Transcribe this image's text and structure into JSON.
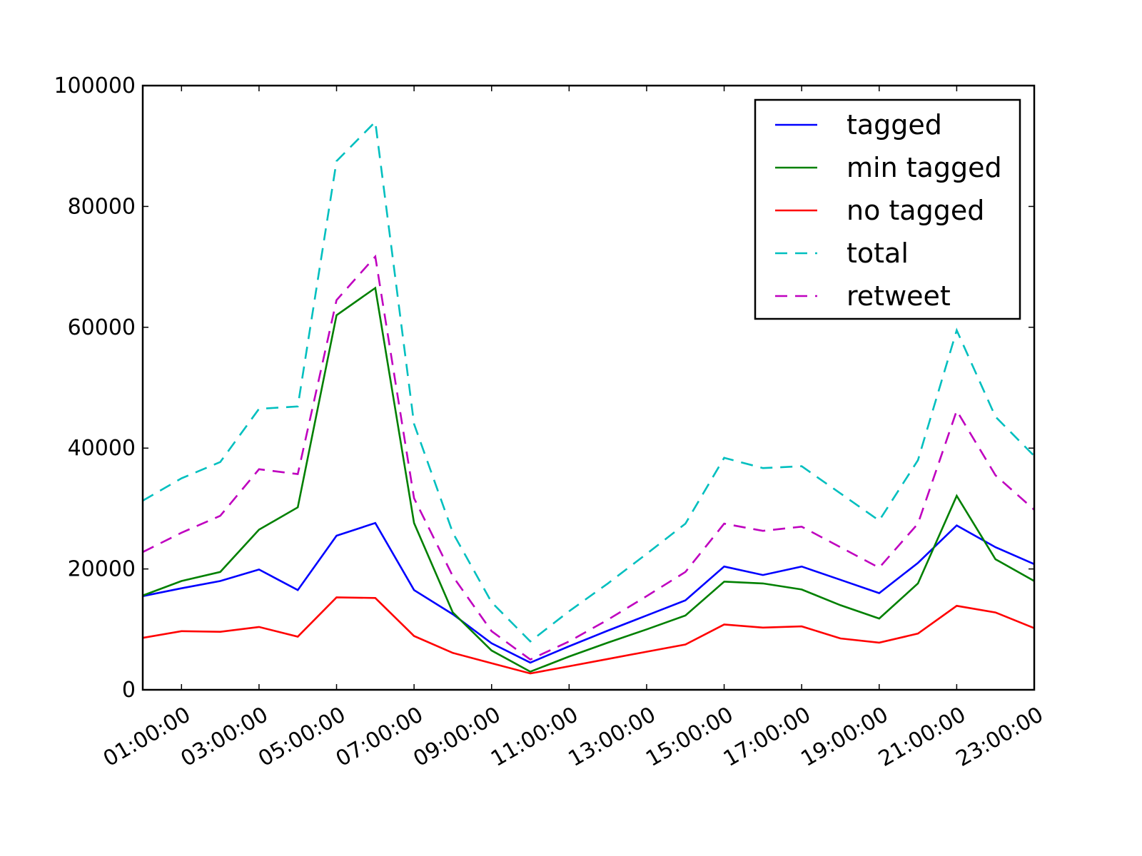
{
  "chart_data": {
    "type": "line",
    "title": "",
    "xlabel": "",
    "ylabel": "",
    "x": [
      "00:00:00",
      "01:00:00",
      "02:00:00",
      "03:00:00",
      "04:00:00",
      "05:00:00",
      "06:00:00",
      "07:00:00",
      "08:00:00",
      "09:00:00",
      "10:00:00",
      "11:00:00",
      "12:00:00",
      "13:00:00",
      "14:00:00",
      "15:00:00",
      "16:00:00",
      "17:00:00",
      "18:00:00",
      "19:00:00",
      "20:00:00",
      "21:00:00",
      "22:00:00",
      "23:00:00"
    ],
    "x_tick_labels": [
      "01:00:00",
      "03:00:00",
      "05:00:00",
      "07:00:00",
      "09:00:00",
      "11:00:00",
      "13:00:00",
      "15:00:00",
      "17:00:00",
      "19:00:00",
      "21:00:00",
      "23:00:00"
    ],
    "y_tick_labels": [
      "0",
      "20000",
      "40000",
      "60000",
      "80000",
      "100000"
    ],
    "ylim": [
      0,
      100000
    ],
    "grid": false,
    "legend_position": "top-right",
    "series": [
      {
        "name": "tagged",
        "color": "#0000ff",
        "style": "solid",
        "values": [
          15500,
          16800,
          18000,
          19900,
          16500,
          25500,
          27600,
          16500,
          12500,
          7700,
          4500,
          7200,
          9800,
          12300,
          14800,
          20400,
          19000,
          20400,
          18200,
          16000,
          21000,
          27200,
          23600,
          20800
        ]
      },
      {
        "name": "min tagged",
        "color": "#008000",
        "style": "solid",
        "values": [
          15600,
          18000,
          19500,
          26500,
          30200,
          62000,
          66500,
          27600,
          12800,
          6500,
          3000,
          5500,
          7800,
          10000,
          12300,
          17900,
          17600,
          16600,
          14000,
          11800,
          17600,
          32100,
          21600,
          18000
        ]
      },
      {
        "name": "no tagged",
        "color": "#ff0000",
        "style": "solid",
        "values": [
          8600,
          9700,
          9600,
          10400,
          8800,
          15300,
          15200,
          8900,
          6100,
          4400,
          2700,
          3900,
          5100,
          6300,
          7500,
          10800,
          10300,
          10500,
          8500,
          7800,
          9300,
          13900,
          12800,
          10200
        ]
      },
      {
        "name": "total",
        "color": "#00bfbf",
        "style": "dashed",
        "values": [
          31300,
          35000,
          37700,
          46500,
          46900,
          87500,
          94000,
          44000,
          26000,
          14500,
          8000,
          13000,
          17600,
          22500,
          27500,
          38400,
          36700,
          37000,
          32500,
          28000,
          38000,
          59500,
          45200,
          38700
        ]
      },
      {
        "name": "retweet",
        "color": "#bf00bf",
        "style": "dashed",
        "values": [
          22800,
          26000,
          28800,
          36500,
          35700,
          64500,
          71700,
          31700,
          18800,
          9700,
          5000,
          8000,
          11600,
          15500,
          19500,
          27500,
          26300,
          27000,
          23600,
          20200,
          27500,
          46200,
          35500,
          29800
        ]
      }
    ]
  }
}
